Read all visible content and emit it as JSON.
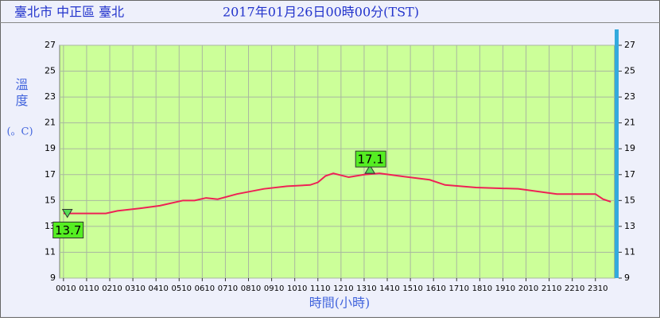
{
  "header": {
    "location": "臺北市 中正區 臺北",
    "time": "2017年01月26日00時00分(TST)"
  },
  "chart_data": {
    "type": "line",
    "xlabel": "時間(小時)",
    "ylabel": "溫度",
    "yunit": "(。C)",
    "xlim": [
      0,
      1440
    ],
    "xticks": [
      {
        "value": 10,
        "label": "0010"
      },
      {
        "value": 70,
        "label": "0110"
      },
      {
        "value": 130,
        "label": "0210"
      },
      {
        "value": 190,
        "label": "0310"
      },
      {
        "value": 250,
        "label": "0410"
      },
      {
        "value": 310,
        "label": "0510"
      },
      {
        "value": 370,
        "label": "0610"
      },
      {
        "value": 430,
        "label": "0710"
      },
      {
        "value": 490,
        "label": "0810"
      },
      {
        "value": 550,
        "label": "0910"
      },
      {
        "value": 610,
        "label": "1010"
      },
      {
        "value": 670,
        "label": "1110"
      },
      {
        "value": 730,
        "label": "1210"
      },
      {
        "value": 790,
        "label": "1310"
      },
      {
        "value": 850,
        "label": "1410"
      },
      {
        "value": 910,
        "label": "1510"
      },
      {
        "value": 970,
        "label": "1610"
      },
      {
        "value": 1030,
        "label": "1710"
      },
      {
        "value": 1090,
        "label": "1810"
      },
      {
        "value": 1150,
        "label": "1910"
      },
      {
        "value": 1210,
        "label": "2010"
      },
      {
        "value": 1270,
        "label": "2110"
      },
      {
        "value": 1330,
        "label": "2210"
      },
      {
        "value": 1390,
        "label": "2310"
      }
    ],
    "ylim": [
      9,
      27
    ],
    "yticks": [
      9,
      11,
      13,
      15,
      17,
      19,
      21,
      23,
      25,
      27
    ],
    "grid": true,
    "color": "#ee2255",
    "x": [
      10,
      120,
      150,
      210,
      260,
      320,
      350,
      380,
      410,
      460,
      530,
      590,
      650,
      670,
      690,
      710,
      750,
      790,
      830,
      880,
      960,
      1000,
      1080,
      1190,
      1290,
      1390,
      1410,
      1430
    ],
    "values": [
      14.0,
      14.0,
      14.2,
      14.4,
      14.6,
      15.0,
      15.0,
      15.2,
      15.1,
      15.5,
      15.9,
      16.1,
      16.2,
      16.4,
      16.9,
      17.1,
      16.8,
      17.0,
      17.1,
      16.9,
      16.6,
      16.2,
      16.0,
      15.9,
      15.5,
      15.5,
      15.1,
      14.9
    ],
    "annotations": [
      {
        "x": 20,
        "value": 13.7,
        "kind": "min"
      },
      {
        "x": 805,
        "value": 17.1,
        "kind": "max"
      }
    ]
  }
}
